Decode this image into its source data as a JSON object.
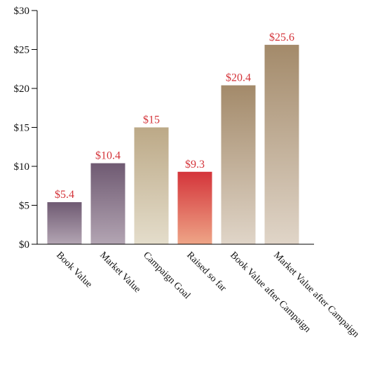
{
  "chart_data": {
    "type": "bar",
    "categories": [
      "Book Value",
      "Market Value",
      "Campaign Goal",
      "Raised so far",
      "Book Value after Campaign",
      "Market Value after Campaign"
    ],
    "values": [
      5.4,
      10.4,
      15,
      9.3,
      20.4,
      25.6
    ],
    "data_labels": [
      "$5.4",
      "$10.4",
      "$15",
      "$9.3",
      "$20.4",
      "$25.6"
    ],
    "title": "",
    "xlabel": "",
    "ylabel": "",
    "ylim": [
      0,
      30
    ],
    "yticks": [
      0,
      5,
      10,
      15,
      20,
      25,
      30
    ],
    "ytick_labels": [
      "$0",
      "$5",
      "$10",
      "$15",
      "$20",
      "$25",
      "$30"
    ],
    "grid": false,
    "legend": "none",
    "colors": {
      "data_label": "#d4343a",
      "bars": [
        {
          "top": "#6f5a72",
          "bottom": "#b3a5b3"
        },
        {
          "top": "#6f5a72",
          "bottom": "#b3a5b3"
        },
        {
          "top": "#bca987",
          "bottom": "#e4ddcb"
        },
        {
          "top": "#d4343a",
          "bottom": "#eea587"
        },
        {
          "top": "#a38a6a",
          "bottom": "#e0d5c8"
        },
        {
          "top": "#a38a6a",
          "bottom": "#e0d5c8"
        }
      ]
    }
  }
}
